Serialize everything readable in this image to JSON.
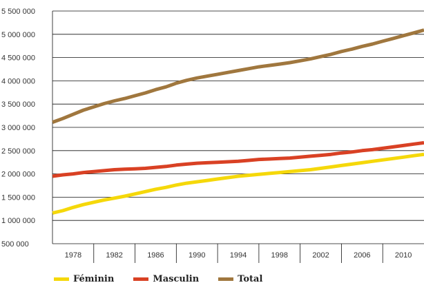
{
  "chart_data": {
    "type": "line",
    "x": [
      1976,
      1977,
      1978,
      1979,
      1980,
      1981,
      1982,
      1983,
      1984,
      1985,
      1986,
      1987,
      1988,
      1989,
      1990,
      1991,
      1992,
      1993,
      1994,
      1995,
      1996,
      1997,
      1998,
      1999,
      2000,
      2001,
      2002,
      2003,
      2004,
      2005,
      2006,
      2007,
      2008,
      2009,
      2010,
      2011,
      2012
    ],
    "x_ticks": [
      {
        "value": 1978,
        "label": "1978"
      },
      {
        "value": 1982,
        "label": "1982"
      },
      {
        "value": 1986,
        "label": "1986"
      },
      {
        "value": 1990,
        "label": "1990"
      },
      {
        "value": 1994,
        "label": "1994"
      },
      {
        "value": 1998,
        "label": "1998"
      },
      {
        "value": 2002,
        "label": "2002"
      },
      {
        "value": 2006,
        "label": "2006"
      },
      {
        "value": 2010,
        "label": "2010"
      }
    ],
    "y_ticks": [
      {
        "value": 500000,
        "label": "500 000"
      },
      {
        "value": 1000000,
        "label": "1 000 000"
      },
      {
        "value": 1500000,
        "label": "1 500 000"
      },
      {
        "value": 2000000,
        "label": "2 000 000"
      },
      {
        "value": 2500000,
        "label": "2 500 000"
      },
      {
        "value": 3000000,
        "label": "3 000 000"
      },
      {
        "value": 3500000,
        "label": "3 500 000"
      },
      {
        "value": 4000000,
        "label": "4 000 000"
      },
      {
        "value": 4500000,
        "label": "4 500 000"
      },
      {
        "value": 5000000,
        "label": "5 000 000"
      },
      {
        "value": 5500000,
        "label": "5 500 000"
      }
    ],
    "ylim": [
      500000,
      5500000
    ],
    "xlim": [
      1976,
      2012
    ],
    "grid": "horizontal",
    "legend_position": "bottom",
    "series": [
      {
        "name": "Féminin",
        "color": "#f5d80a",
        "values": [
          1160000,
          1210000,
          1280000,
          1340000,
          1390000,
          1440000,
          1480000,
          1520000,
          1570000,
          1620000,
          1670000,
          1710000,
          1760000,
          1800000,
          1830000,
          1860000,
          1890000,
          1920000,
          1950000,
          1970000,
          1990000,
          2010000,
          2030000,
          2050000,
          2070000,
          2090000,
          2120000,
          2150000,
          2180000,
          2210000,
          2240000,
          2270000,
          2300000,
          2330000,
          2360000,
          2390000,
          2420000
        ]
      },
      {
        "name": "Masculin",
        "color": "#d94124",
        "values": [
          1950000,
          1980000,
          2000000,
          2030000,
          2050000,
          2070000,
          2090000,
          2100000,
          2110000,
          2120000,
          2140000,
          2160000,
          2190000,
          2210000,
          2230000,
          2240000,
          2250000,
          2260000,
          2270000,
          2290000,
          2310000,
          2320000,
          2330000,
          2340000,
          2360000,
          2380000,
          2400000,
          2420000,
          2450000,
          2470000,
          2500000,
          2520000,
          2550000,
          2580000,
          2610000,
          2640000,
          2670000
        ]
      },
      {
        "name": "Total",
        "color": "#a0773e",
        "values": [
          3110000,
          3190000,
          3280000,
          3370000,
          3440000,
          3510000,
          3570000,
          3620000,
          3680000,
          3740000,
          3810000,
          3870000,
          3950000,
          4010000,
          4060000,
          4100000,
          4140000,
          4180000,
          4220000,
          4260000,
          4300000,
          4330000,
          4360000,
          4390000,
          4430000,
          4470000,
          4520000,
          4570000,
          4630000,
          4680000,
          4740000,
          4790000,
          4850000,
          4910000,
          4970000,
          5030000,
          5090000
        ]
      }
    ]
  }
}
